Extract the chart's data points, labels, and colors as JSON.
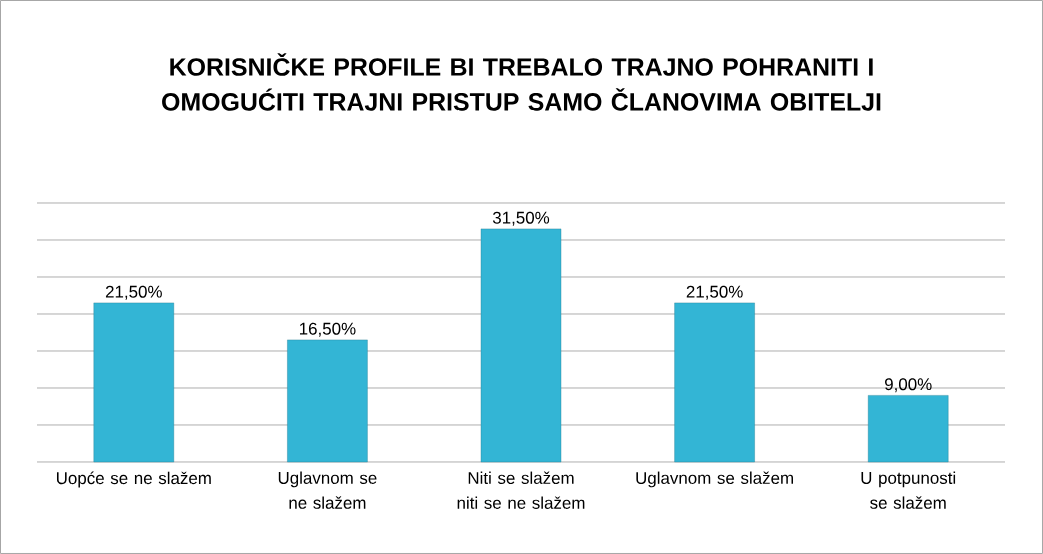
{
  "chart_data": {
    "type": "bar",
    "title": "KORISNIČKE PROFILE BI TREBALO TRAJNO POHRANITI I OMOGUĆITI TRAJNI PRISTUP SAMO ČLANOVIMA OBITELJI",
    "categories": [
      "Uopće se ne slažem",
      "Uglavnom se ne slažem",
      "Niti se slažem niti se ne slažem",
      "Uglavnom se slažem",
      "U potpunosti se slažem"
    ],
    "values": [
      21.5,
      16.5,
      31.5,
      21.5,
      9.0
    ],
    "value_labels": [
      "21,50%",
      "16,50%",
      "31,50%",
      "21,50%",
      "9,00%"
    ],
    "color": "#33b5d5",
    "ylim": [
      0,
      35
    ],
    "yticks": [
      {
        "value": 0,
        "label": null
      },
      {
        "value": 5,
        "label": null
      },
      {
        "value": 10,
        "label": null
      },
      {
        "value": 15,
        "label": null
      },
      {
        "value": 20,
        "label": null
      },
      {
        "value": 25,
        "label": null
      },
      {
        "value": 30,
        "label": null
      },
      {
        "value": 35,
        "label": null
      }
    ],
    "tick_labels": "x",
    "grid": "y"
  }
}
